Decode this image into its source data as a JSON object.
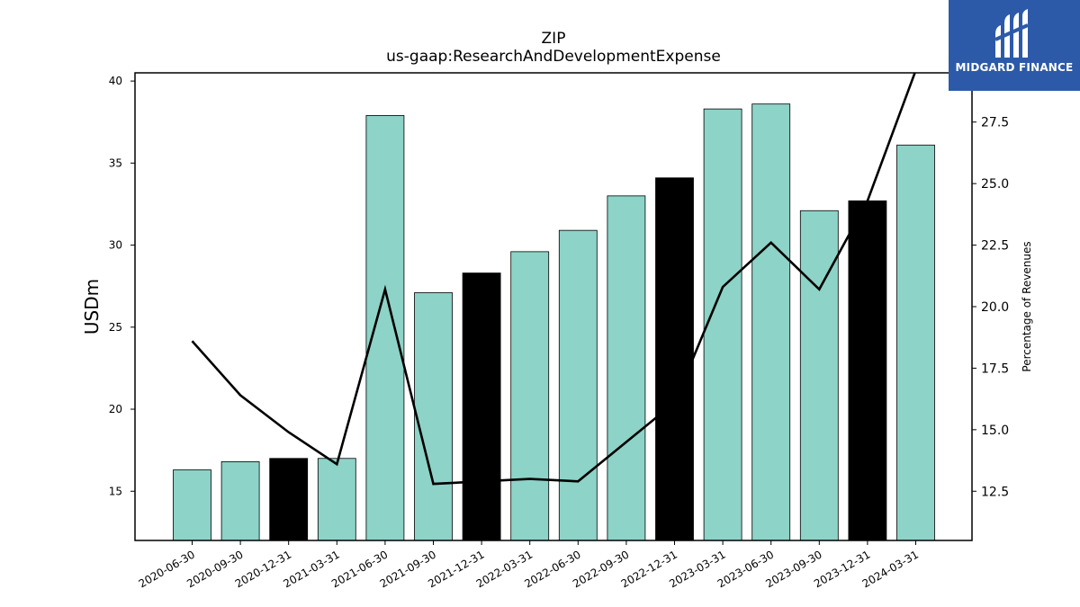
{
  "chart_data": {
    "type": "bar",
    "title": "ZIP",
    "subtitle": "us-gaap:ResearchAndDevelopmentExpense",
    "ylabel": "USDm",
    "ylabel_right": "Percentage of Revenues",
    "ylim": [
      12,
      40.5
    ],
    "ylim_right": [
      10.5,
      29.5
    ],
    "yticks": [
      15,
      20,
      25,
      30,
      35,
      40
    ],
    "yticks_right": [
      "12.5",
      "15.0",
      "17.5",
      "20.0",
      "22.5",
      "25.0",
      "27.5"
    ],
    "categories": [
      "2020-06-30",
      "2020-09-30",
      "2020-12-31",
      "2021-03-31",
      "2021-06-30",
      "2021-09-30",
      "2021-12-31",
      "2022-03-31",
      "2022-06-30",
      "2022-09-30",
      "2022-12-31",
      "2023-03-31",
      "2023-06-30",
      "2023-09-30",
      "2023-12-31",
      "2024-03-31"
    ],
    "series": [
      {
        "type": "bar",
        "axis": "left",
        "values": [
          16.3,
          16.8,
          17.0,
          17.0,
          37.9,
          27.1,
          28.3,
          29.6,
          30.9,
          33.0,
          34.1,
          38.3,
          38.6,
          32.1,
          32.7,
          36.1
        ],
        "colors": [
          "#8dd3c7",
          "#8dd3c7",
          "#000000",
          "#8dd3c7",
          "#8dd3c7",
          "#8dd3c7",
          "#000000",
          "#8dd3c7",
          "#8dd3c7",
          "#8dd3c7",
          "#000000",
          "#8dd3c7",
          "#8dd3c7",
          "#8dd3c7",
          "#000000",
          "#8dd3c7"
        ]
      },
      {
        "type": "line",
        "axis": "right",
        "values": [
          18.6,
          16.4,
          14.9,
          13.6,
          20.7,
          12.8,
          12.9,
          13.0,
          12.9,
          14.5,
          16.1,
          20.8,
          22.6,
          20.7,
          24.3,
          29.6
        ],
        "color": "#000000"
      }
    ],
    "grid": false
  },
  "logo": {
    "text": "MIDGARD FINANCE",
    "background": "#2d5aa8"
  }
}
